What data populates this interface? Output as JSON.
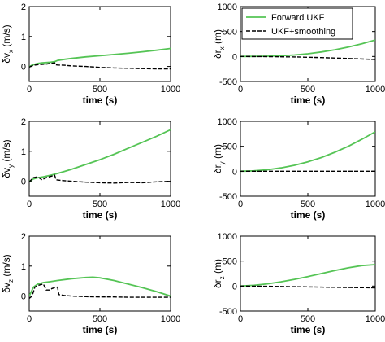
{
  "chart_data": [
    {
      "type": "line",
      "panel": "dvx",
      "ylabel": {
        "prefix": "δv",
        "sub": "x",
        "suffix": " (m/s)"
      },
      "xlabel": "time (s)",
      "xlim": [
        0,
        1000
      ],
      "ylim": [
        -0.5,
        2
      ],
      "xticks": [
        0,
        500,
        1000
      ],
      "yticks": [
        0,
        1,
        2
      ],
      "series": [
        {
          "name": "Forward UKF",
          "color": "#55c455",
          "dash": "solid",
          "x": [
            0,
            30,
            60,
            90,
            120,
            150,
            180,
            200,
            250,
            300,
            400,
            500,
            600,
            700,
            800,
            900,
            1000
          ],
          "y": [
            0.0,
            0.06,
            0.1,
            0.12,
            0.13,
            0.14,
            0.16,
            0.2,
            0.24,
            0.27,
            0.32,
            0.36,
            0.4,
            0.44,
            0.49,
            0.54,
            0.6
          ]
        },
        {
          "name": "UKF+smoothing",
          "color": "#000000",
          "dash": "dashed",
          "x": [
            0,
            30,
            60,
            90,
            120,
            150,
            180,
            185,
            200,
            250,
            300,
            400,
            500,
            600,
            700,
            800,
            900,
            1000
          ],
          "y": [
            -0.02,
            0.04,
            0.06,
            0.07,
            0.08,
            0.1,
            0.12,
            0.06,
            0.05,
            0.04,
            0.02,
            0.0,
            -0.03,
            -0.05,
            -0.06,
            -0.07,
            -0.08,
            -0.08
          ]
        }
      ]
    },
    {
      "type": "line",
      "panel": "drx",
      "ylabel": {
        "prefix": "δr",
        "sub": "x",
        "suffix": " (m)"
      },
      "xlabel": "time (s)",
      "xlim": [
        0,
        1000
      ],
      "ylim": [
        -500,
        1000
      ],
      "xticks": [
        0,
        500,
        1000
      ],
      "yticks": [
        -500,
        0,
        500,
        1000
      ],
      "legend": {
        "position": "top-left"
      },
      "series": [
        {
          "name": "Forward UKF",
          "color": "#55c455",
          "dash": "solid",
          "x": [
            0,
            100,
            200,
            300,
            400,
            500,
            600,
            700,
            800,
            900,
            1000
          ],
          "y": [
            0,
            2,
            6,
            14,
            30,
            55,
            90,
            135,
            190,
            255,
            330
          ]
        },
        {
          "name": "UKF+smoothing",
          "color": "#000000",
          "dash": "dashed",
          "x": [
            0,
            200,
            400,
            600,
            800,
            1000
          ],
          "y": [
            0,
            -3,
            -10,
            -22,
            -40,
            -60
          ]
        }
      ]
    },
    {
      "type": "line",
      "panel": "dvy",
      "ylabel": {
        "prefix": "δv",
        "sub": "y",
        "suffix": " (m/s)"
      },
      "xlabel": "time (s)",
      "xlim": [
        0,
        1000
      ],
      "ylim": [
        -0.5,
        2
      ],
      "xticks": [
        0,
        500,
        1000
      ],
      "yticks": [
        0,
        1,
        2
      ],
      "series": [
        {
          "name": "Forward UKF",
          "color": "#55c455",
          "dash": "solid",
          "x": [
            0,
            30,
            60,
            100,
            150,
            200,
            250,
            300,
            400,
            500,
            600,
            700,
            800,
            900,
            1000
          ],
          "y": [
            0.0,
            0.08,
            0.12,
            0.15,
            0.2,
            0.26,
            0.33,
            0.4,
            0.56,
            0.72,
            0.9,
            1.1,
            1.3,
            1.5,
            1.72
          ]
        },
        {
          "name": "UKF+smoothing",
          "color": "#000000",
          "dash": "dashed",
          "x": [
            0,
            30,
            60,
            90,
            120,
            150,
            180,
            190,
            200,
            250,
            300,
            400,
            500,
            600,
            700,
            800,
            900,
            1000
          ],
          "y": [
            -0.02,
            0.12,
            0.15,
            0.05,
            0.12,
            0.16,
            0.2,
            0.05,
            0.04,
            0.02,
            0.0,
            -0.03,
            -0.05,
            -0.06,
            -0.04,
            -0.05,
            -0.02,
            0.0
          ]
        }
      ]
    },
    {
      "type": "line",
      "panel": "dry",
      "ylabel": {
        "prefix": "δr",
        "sub": "y",
        "suffix": " (m)"
      },
      "xlabel": "time (s)",
      "xlim": [
        0,
        1000
      ],
      "ylim": [
        -500,
        1000
      ],
      "xticks": [
        0,
        500,
        1000
      ],
      "yticks": [
        -500,
        0,
        500,
        1000
      ],
      "series": [
        {
          "name": "Forward UKF",
          "color": "#55c455",
          "dash": "solid",
          "x": [
            0,
            100,
            200,
            300,
            400,
            500,
            600,
            700,
            800,
            900,
            1000
          ],
          "y": [
            0,
            8,
            30,
            68,
            120,
            190,
            275,
            380,
            500,
            640,
            790
          ]
        },
        {
          "name": "UKF+smoothing",
          "color": "#000000",
          "dash": "dashed",
          "x": [
            0,
            500,
            1000
          ],
          "y": [
            0,
            0,
            0
          ]
        }
      ]
    },
    {
      "type": "line",
      "panel": "dvz",
      "ylabel": {
        "prefix": "δv",
        "sub": "z",
        "suffix": " (m/s)"
      },
      "xlabel": "time (s)",
      "xlim": [
        0,
        1000
      ],
      "ylim": [
        -0.5,
        2
      ],
      "xticks": [
        0,
        500,
        1000
      ],
      "yticks": [
        0,
        1,
        2
      ],
      "series": [
        {
          "name": "Forward UKF",
          "color": "#55c455",
          "dash": "solid",
          "x": [
            0,
            30,
            60,
            100,
            150,
            200,
            300,
            400,
            450,
            500,
            600,
            700,
            800,
            900,
            1000
          ],
          "y": [
            0.0,
            0.3,
            0.4,
            0.45,
            0.48,
            0.52,
            0.58,
            0.62,
            0.63,
            0.61,
            0.52,
            0.4,
            0.28,
            0.15,
            0.0
          ]
        },
        {
          "name": "UKF+smoothing",
          "color": "#000000",
          "dash": "dashed",
          "x": [
            0,
            20,
            40,
            60,
            80,
            100,
            120,
            150,
            160,
            180,
            200,
            210,
            250,
            300,
            400,
            500,
            600,
            700,
            800,
            900,
            1000
          ],
          "y": [
            -0.08,
            0.0,
            0.3,
            0.35,
            0.38,
            0.4,
            0.2,
            0.2,
            0.25,
            0.28,
            0.3,
            0.05,
            0.02,
            0.0,
            -0.02,
            -0.03,
            -0.03,
            -0.04,
            -0.04,
            -0.04,
            -0.04
          ]
        }
      ]
    },
    {
      "type": "line",
      "panel": "drz",
      "ylabel": {
        "prefix": "δr",
        "sub": "z",
        "suffix": " (m)"
      },
      "xlabel": "time (s)",
      "xlim": [
        0,
        1000
      ],
      "ylim": [
        -500,
        1000
      ],
      "xticks": [
        0,
        500,
        1000
      ],
      "yticks": [
        -500,
        0,
        500,
        1000
      ],
      "series": [
        {
          "name": "Forward UKF",
          "color": "#55c455",
          "dash": "solid",
          "x": [
            0,
            100,
            200,
            300,
            400,
            500,
            600,
            700,
            800,
            900,
            1000
          ],
          "y": [
            0,
            15,
            45,
            85,
            135,
            190,
            250,
            310,
            365,
            410,
            430
          ]
        },
        {
          "name": "UKF+smoothing",
          "color": "#000000",
          "dash": "dashed",
          "x": [
            0,
            200,
            400,
            600,
            800,
            1000
          ],
          "y": [
            0,
            -5,
            -12,
            -20,
            -28,
            -35
          ]
        }
      ]
    }
  ]
}
